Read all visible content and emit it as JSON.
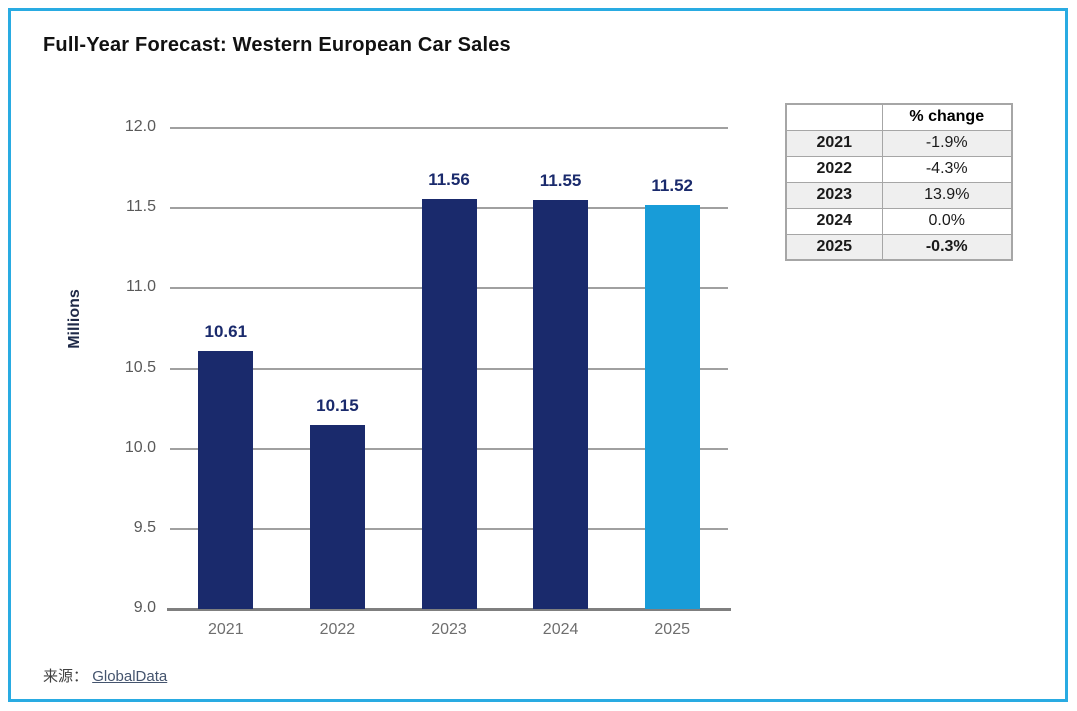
{
  "title": "Full-Year Forecast: Western European Car Sales",
  "chart_data": {
    "type": "bar",
    "categories": [
      "2021",
      "2022",
      "2023",
      "2024",
      "2025"
    ],
    "values": [
      10.61,
      10.15,
      11.56,
      11.55,
      11.52
    ],
    "value_labels": [
      "10.61",
      "10.15",
      "11.56",
      "11.55",
      "11.52"
    ],
    "highlight_index": 4,
    "title": "Full-Year Forecast: Western European Car Sales",
    "xlabel": "",
    "ylabel": "Millions",
    "ylim": [
      9.0,
      12.0
    ],
    "yticks": [
      "12.0",
      "11.5",
      "11.0",
      "10.5",
      "10.0",
      "9.5",
      "9.0"
    ],
    "grid": true,
    "legend": false
  },
  "table": {
    "header": [
      "",
      "% change"
    ],
    "rows": [
      {
        "year": "2021",
        "change": "-1.9%"
      },
      {
        "year": "2022",
        "change": "-4.3%"
      },
      {
        "year": "2023",
        "change": "13.9%"
      },
      {
        "year": "2024",
        "change": "0.0%"
      },
      {
        "year": "2025",
        "change": "-0.3%"
      }
    ]
  },
  "source": {
    "prefix": "来源：",
    "link_text": "GlobalData"
  },
  "colors": {
    "bar_primary": "#1a2a6c",
    "bar_highlight": "#189cd8",
    "frame_border": "#29abe2",
    "gridline": "#a0a0a0",
    "axis_line": "#7f7f7f",
    "tick_label": "#595959",
    "data_label": "#1a2a6c",
    "link": "#44546e"
  }
}
